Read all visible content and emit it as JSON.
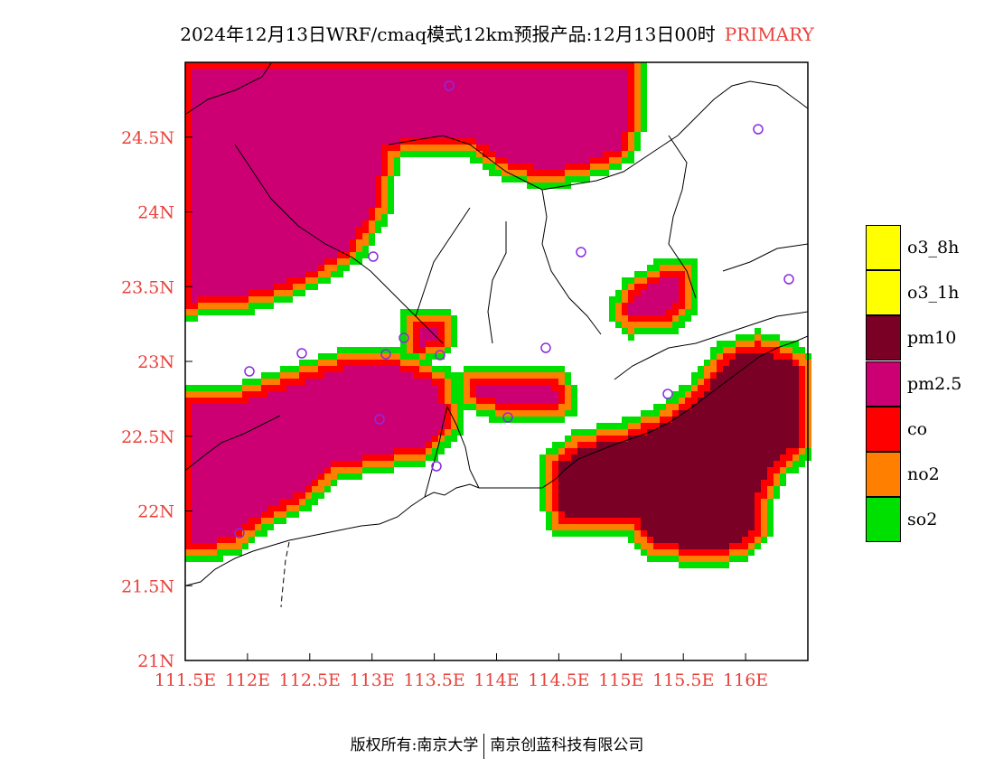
{
  "title": {
    "main": "2024年12月13日WRF/cmaq模式12km预报产品:12月13日00时",
    "tag": "PRIMARY"
  },
  "axes": {
    "x_labels": [
      "111.5E",
      "112E",
      "112.5E",
      "113E",
      "113.5E",
      "114E",
      "114.5E",
      "115E",
      "115.5E",
      "116E"
    ],
    "y_labels": [
      "21N",
      "21.5N",
      "22N",
      "22.5N",
      "23N",
      "23.5N",
      "24N",
      "24.5N"
    ],
    "label_color": "#e8423c",
    "lon_range": [
      111.5,
      116.5
    ],
    "lat_range": [
      21.0,
      25.0
    ]
  },
  "legend": [
    {
      "label": "o3_8h",
      "color": "#ffff00"
    },
    {
      "label": "o3_1h",
      "color": "#ffff00"
    },
    {
      "label": "pm10",
      "color": "#7a0026"
    },
    {
      "label": "pm2.5",
      "color": "#cc0073"
    },
    {
      "label": "co",
      "color": "#ff0000"
    },
    {
      "label": "no2",
      "color": "#ff8000"
    },
    {
      "label": "so2",
      "color": "#00e000"
    }
  ],
  "stations_color": "#8a2be2",
  "footer": {
    "left": "版权所有:南京大学",
    "right": "南京创蓝科技有限公司"
  }
}
